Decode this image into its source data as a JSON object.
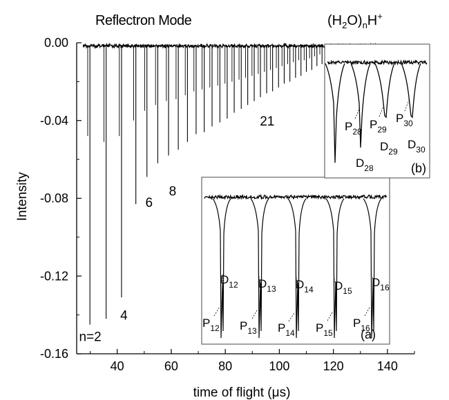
{
  "chart_data": {
    "type": "line",
    "title": "Reflectron Mode",
    "formula": {
      "base": "(H",
      "sub1": "2",
      "mid": "O)",
      "sub2": "n",
      "tail": "H",
      "sup": "+"
    },
    "xlabel": "time of flight (μs)",
    "ylabel": "Intensity",
    "xlim": [
      25,
      150
    ],
    "ylim": [
      -0.16,
      0.0
    ],
    "x_ticks": [
      {
        "value": 40,
        "label": "40"
      },
      {
        "value": 60,
        "label": "60"
      },
      {
        "value": 80,
        "label": "80"
      },
      {
        "value": 100,
        "label": "100"
      },
      {
        "value": 120,
        "label": "120"
      },
      {
        "value": 140,
        "label": "140"
      }
    ],
    "y_ticks": [
      {
        "value": 0.0,
        "label": "0.00"
      },
      {
        "value": -0.04,
        "label": "-0.04"
      },
      {
        "value": -0.08,
        "label": "-0.08"
      },
      {
        "value": -0.12,
        "label": "-0.12"
      },
      {
        "value": -0.16,
        "label": "-0.16"
      }
    ],
    "peaks": {
      "x": [
        29.9,
        35.9,
        41.6,
        46.9,
        51.0,
        55.0,
        59.0,
        62.6,
        66.0,
        69.2,
        72.2,
        75.1,
        78.0,
        80.7,
        83.3,
        85.9,
        88.3,
        90.7,
        93.0,
        95.3,
        97.5,
        99.7,
        101.8,
        103.9,
        106.0,
        108.0,
        110.0,
        112.0,
        113.9,
        115.8,
        117.7,
        119.5,
        121.3,
        123.1,
        124.9,
        126.6,
        128.3,
        130.0
      ],
      "y": [
        -0.145,
        -0.142,
        -0.131,
        -0.083,
        -0.069,
        -0.062,
        -0.058,
        -0.055,
        -0.051,
        -0.047,
        -0.046,
        -0.043,
        -0.041,
        -0.039,
        -0.036,
        -0.034,
        -0.032,
        -0.03,
        -0.028,
        -0.026,
        -0.025,
        -0.023,
        -0.021,
        -0.02,
        -0.018,
        -0.017,
        -0.015,
        -0.014,
        -0.012,
        -0.011,
        -0.01,
        -0.009,
        -0.008,
        -0.007,
        -0.006,
        -0.005,
        -0.004,
        -0.003
      ],
      "secondary_dip": [
        -0.048,
        -0.051,
        -0.048,
        -0.04,
        -0.035,
        -0.032,
        -0.03,
        -0.029,
        -0.027,
        -0.025,
        -0.024,
        -0.023,
        -0.022,
        -0.021,
        -0.02,
        -0.019,
        -0.018,
        -0.017,
        -0.016,
        -0.015,
        -0.014,
        -0.013,
        -0.012,
        -0.011,
        -0.01,
        -0.009,
        -0.009,
        -0.008,
        -0.007,
        -0.006,
        -0.006,
        -0.005,
        -0.004,
        -0.004,
        -0.003,
        -0.003,
        -0.002,
        -0.002
      ]
    },
    "peak_labels": [
      {
        "text": "n=2",
        "x": 30,
        "y": -0.1535
      },
      {
        "text": "4",
        "x": 42.5,
        "y": -0.1425
      },
      {
        "text": "6",
        "x": 51.8,
        "y": -0.0845
      },
      {
        "text": "8",
        "x": 60.5,
        "y": -0.0785
      },
      {
        "text": "21",
        "x": 95.5,
        "y": -0.0425
      }
    ],
    "insets": [
      {
        "tag": "(a)",
        "peak_labels": [
          {
            "letter": "P",
            "sub": "12"
          },
          {
            "letter": "D",
            "sub": "12"
          },
          {
            "letter": "P",
            "sub": "13"
          },
          {
            "letter": "D",
            "sub": "13"
          },
          {
            "letter": "P",
            "sub": "14"
          },
          {
            "letter": "D",
            "sub": "14"
          },
          {
            "letter": "P",
            "sub": "15"
          },
          {
            "letter": "D",
            "sub": "15"
          },
          {
            "letter": "P",
            "sub": "16"
          },
          {
            "letter": "D",
            "sub": "16"
          }
        ]
      },
      {
        "tag": "(b)",
        "peak_labels": [
          {
            "letter": "P",
            "sub": "28"
          },
          {
            "letter": "D",
            "sub": "28"
          },
          {
            "letter": "P",
            "sub": "29"
          },
          {
            "letter": "D",
            "sub": "29"
          },
          {
            "letter": "P",
            "sub": "30"
          },
          {
            "letter": "D",
            "sub": "30"
          }
        ]
      }
    ],
    "grid": false,
    "line_color": "#000000"
  }
}
